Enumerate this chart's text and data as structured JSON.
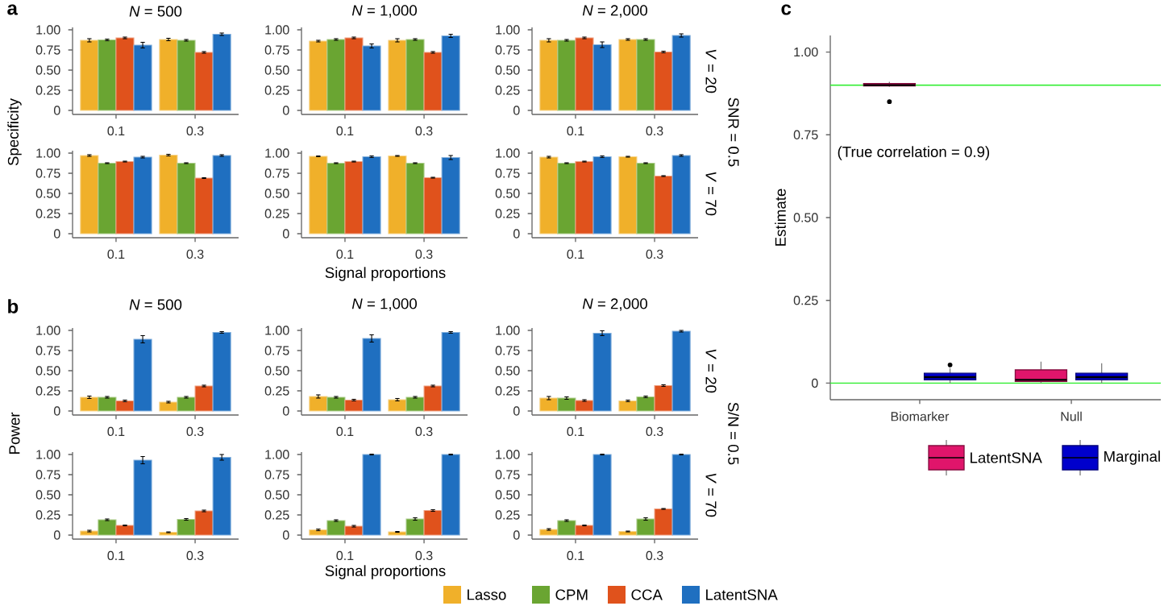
{
  "chart_data": [
    {
      "type": "bar",
      "title": "*N* = 500",
      "ylabel": "Specificity",
      "annotations": [
        "a"
      ],
      "categories": [
        "0.1",
        "0.3"
      ],
      "ylim": [
        -0.05,
        1.03
      ],
      "yticks": [
        0,
        {
          "value": 0.25,
          "label": "0.25"
        },
        {
          "value": 0.5,
          "label": "0.50"
        },
        {
          "value": 0.75,
          "label": "0.75"
        },
        {
          "value": 1,
          "label": "1.00"
        }
      ],
      "series": [
        {
          "color": "#f0b02a",
          "values": [
            0.87,
            0.88
          ],
          "errors": [
            0.02,
            0.015
          ]
        },
        {
          "color": "#6aa532",
          "values": [
            0.875,
            0.87
          ],
          "errors": [
            0.01,
            0.01
          ]
        },
        {
          "color": "#e0521c",
          "values": [
            0.9,
            0.72
          ],
          "errors": [
            0.01,
            0.01
          ]
        },
        {
          "color": "#1f6fc0",
          "values": [
            0.81,
            0.945
          ],
          "errors": [
            0.035,
            0.015
          ]
        }
      ]
    },
    {
      "type": "bar",
      "title": "*N* = 1,000",
      "categories": [
        "0.1",
        "0.3"
      ],
      "ylim": [
        -0.05,
        1.03
      ],
      "yticks": [
        0,
        {
          "value": 0.25,
          "label": "0.25"
        },
        {
          "value": 0.5,
          "label": "0.50"
        },
        {
          "value": 0.75,
          "label": "0.75"
        },
        {
          "value": 1,
          "label": "1.00"
        }
      ],
      "series": [
        {
          "color": "#f0b02a",
          "values": [
            0.86,
            0.87
          ],
          "errors": [
            0.01,
            0.02
          ]
        },
        {
          "color": "#6aa532",
          "values": [
            0.88,
            0.88
          ],
          "errors": [
            0.01,
            0.01
          ]
        },
        {
          "color": "#e0521c",
          "values": [
            0.9,
            0.72
          ],
          "errors": [
            0.01,
            0.01
          ]
        },
        {
          "color": "#1f6fc0",
          "values": [
            0.8,
            0.925
          ],
          "errors": [
            0.025,
            0.02
          ]
        }
      ]
    },
    {
      "type": "bar",
      "title": "*N* = 2,000",
      "annotations": [
        "*V* = 20",
        "SNR = 0.5"
      ],
      "categories": [
        "0.1",
        "0.3"
      ],
      "ylim": [
        -0.05,
        1.03
      ],
      "yticks": [
        0,
        {
          "value": 0.25,
          "label": "0.25"
        },
        {
          "value": 0.5,
          "label": "0.50"
        },
        {
          "value": 0.75,
          "label": "0.75"
        },
        {
          "value": 1,
          "label": "1.00"
        }
      ],
      "series": [
        {
          "color": "#f0b02a",
          "values": [
            0.87,
            0.88
          ],
          "errors": [
            0.02,
            0.01
          ]
        },
        {
          "color": "#6aa532",
          "values": [
            0.87,
            0.88
          ],
          "errors": [
            0.01,
            0.01
          ]
        },
        {
          "color": "#e0521c",
          "values": [
            0.9,
            0.725
          ],
          "errors": [
            0.01,
            0.01
          ]
        },
        {
          "color": "#1f6fc0",
          "values": [
            0.815,
            0.93
          ],
          "errors": [
            0.035,
            0.02
          ]
        }
      ]
    },
    {
      "type": "bar",
      "categories": [
        "0.1",
        "0.3"
      ],
      "ylim": [
        -0.05,
        1.03
      ],
      "yticks": [
        0,
        {
          "value": 0.25,
          "label": "0.25"
        },
        {
          "value": 0.5,
          "label": "0.50"
        },
        {
          "value": 0.75,
          "label": "0.75"
        },
        {
          "value": 1,
          "label": "1.00"
        }
      ],
      "series": [
        {
          "color": "#f0b02a",
          "values": [
            0.97,
            0.975
          ],
          "errors": [
            0.01,
            0.01
          ]
        },
        {
          "color": "#6aa532",
          "values": [
            0.875,
            0.875
          ],
          "errors": [
            0.005,
            0.005
          ]
        },
        {
          "color": "#e0521c",
          "values": [
            0.895,
            0.69
          ],
          "errors": [
            0.005,
            0.005
          ]
        },
        {
          "color": "#1f6fc0",
          "values": [
            0.95,
            0.97
          ],
          "errors": [
            0.01,
            0.01
          ]
        }
      ]
    },
    {
      "type": "bar",
      "xlabel": "Signal proportions",
      "categories": [
        "0.1",
        "0.3"
      ],
      "ylim": [
        -0.05,
        1.03
      ],
      "yticks": [
        0,
        {
          "value": 0.25,
          "label": "0.25"
        },
        {
          "value": 0.5,
          "label": "0.50"
        },
        {
          "value": 0.75,
          "label": "0.75"
        },
        {
          "value": 1,
          "label": "1.00"
        }
      ],
      "series": [
        {
          "color": "#f0b02a",
          "values": [
            0.96,
            0.965
          ],
          "errors": [
            0.005,
            0.005
          ]
        },
        {
          "color": "#6aa532",
          "values": [
            0.875,
            0.875
          ],
          "errors": [
            0.005,
            0.005
          ]
        },
        {
          "color": "#e0521c",
          "values": [
            0.895,
            0.695
          ],
          "errors": [
            0.005,
            0.005
          ]
        },
        {
          "color": "#1f6fc0",
          "values": [
            0.955,
            0.945
          ],
          "errors": [
            0.01,
            0.025
          ]
        }
      ]
    },
    {
      "type": "bar",
      "annotations": [
        "*V* = 70"
      ],
      "categories": [
        "0.1",
        "0.3"
      ],
      "ylim": [
        -0.05,
        1.03
      ],
      "yticks": [
        0,
        {
          "value": 0.25,
          "label": "0.25"
        },
        {
          "value": 0.5,
          "label": "0.50"
        },
        {
          "value": 0.75,
          "label": "0.75"
        },
        {
          "value": 1,
          "label": "1.00"
        }
      ],
      "series": [
        {
          "color": "#f0b02a",
          "values": [
            0.95,
            0.955
          ],
          "errors": [
            0.01,
            0.005
          ]
        },
        {
          "color": "#6aa532",
          "values": [
            0.875,
            0.875
          ],
          "errors": [
            0.005,
            0.005
          ]
        },
        {
          "color": "#e0521c",
          "values": [
            0.895,
            0.715
          ],
          "errors": [
            0.005,
            0.005
          ]
        },
        {
          "color": "#1f6fc0",
          "values": [
            0.955,
            0.97
          ],
          "errors": [
            0.01,
            0.01
          ]
        }
      ]
    },
    {
      "type": "bar",
      "title": "*N* = 500",
      "ylabel": "Power",
      "annotations": [
        "b"
      ],
      "categories": [
        "0.1",
        "0.3"
      ],
      "ylim": [
        -0.05,
        1.03
      ],
      "yticks": [
        0,
        {
          "value": 0.25,
          "label": "0.25"
        },
        {
          "value": 0.5,
          "label": "0.50"
        },
        {
          "value": 0.75,
          "label": "0.75"
        },
        {
          "value": 1,
          "label": "1.00"
        }
      ],
      "series": [
        {
          "color": "#f0b02a",
          "values": [
            0.17,
            0.11
          ],
          "errors": [
            0.015,
            0.01
          ]
        },
        {
          "color": "#6aa532",
          "values": [
            0.17,
            0.17
          ],
          "errors": [
            0.01,
            0.01
          ]
        },
        {
          "color": "#e0521c",
          "values": [
            0.125,
            0.31
          ],
          "errors": [
            0.01,
            0.01
          ]
        },
        {
          "color": "#1f6fc0",
          "values": [
            0.89,
            0.975
          ],
          "errors": [
            0.045,
            0.01
          ]
        }
      ]
    },
    {
      "type": "bar",
      "title": "*N* = 1,000",
      "categories": [
        "0.1",
        "0.3"
      ],
      "ylim": [
        -0.05,
        1.03
      ],
      "yticks": [
        0,
        {
          "value": 0.25,
          "label": "0.25"
        },
        {
          "value": 0.5,
          "label": "0.50"
        },
        {
          "value": 0.75,
          "label": "0.75"
        },
        {
          "value": 1,
          "label": "1.00"
        }
      ],
      "series": [
        {
          "color": "#f0b02a",
          "values": [
            0.18,
            0.14
          ],
          "errors": [
            0.02,
            0.015
          ]
        },
        {
          "color": "#6aa532",
          "values": [
            0.17,
            0.17
          ],
          "errors": [
            0.01,
            0.01
          ]
        },
        {
          "color": "#e0521c",
          "values": [
            0.135,
            0.31
          ],
          "errors": [
            0.01,
            0.01
          ]
        },
        {
          "color": "#1f6fc0",
          "values": [
            0.9,
            0.975
          ],
          "errors": [
            0.045,
            0.01
          ]
        }
      ]
    },
    {
      "type": "bar",
      "title": "*N* = 2,000",
      "annotations": [
        "*V* = 20",
        "S/N = 0.5"
      ],
      "categories": [
        "0.1",
        "0.3"
      ],
      "ylim": [
        -0.05,
        1.03
      ],
      "yticks": [
        0,
        {
          "value": 0.25,
          "label": "0.25"
        },
        {
          "value": 0.5,
          "label": "0.50"
        },
        {
          "value": 0.75,
          "label": "0.75"
        },
        {
          "value": 1,
          "label": "1.00"
        }
      ],
      "series": [
        {
          "color": "#f0b02a",
          "values": [
            0.16,
            0.125
          ],
          "errors": [
            0.02,
            0.01
          ]
        },
        {
          "color": "#6aa532",
          "values": [
            0.16,
            0.175
          ],
          "errors": [
            0.015,
            0.01
          ]
        },
        {
          "color": "#e0521c",
          "values": [
            0.13,
            0.315
          ],
          "errors": [
            0.01,
            0.01
          ]
        },
        {
          "color": "#1f6fc0",
          "values": [
            0.965,
            0.99
          ],
          "errors": [
            0.03,
            0.01
          ]
        }
      ]
    },
    {
      "type": "bar",
      "categories": [
        "0.1",
        "0.3"
      ],
      "ylim": [
        -0.05,
        1.03
      ],
      "yticks": [
        0,
        {
          "value": 0.25,
          "label": "0.25"
        },
        {
          "value": 0.5,
          "label": "0.50"
        },
        {
          "value": 0.75,
          "label": "0.75"
        },
        {
          "value": 1,
          "label": "1.00"
        }
      ],
      "series": [
        {
          "color": "#f0b02a",
          "values": [
            0.05,
            0.035
          ],
          "errors": [
            0.01,
            0.005
          ]
        },
        {
          "color": "#6aa532",
          "values": [
            0.19,
            0.195
          ],
          "errors": [
            0.01,
            0.01
          ]
        },
        {
          "color": "#e0521c",
          "values": [
            0.12,
            0.3
          ],
          "errors": [
            0.005,
            0.01
          ]
        },
        {
          "color": "#1f6fc0",
          "values": [
            0.93,
            0.965
          ],
          "errors": [
            0.045,
            0.035
          ]
        }
      ]
    },
    {
      "type": "bar",
      "xlabel": "Signal proportions",
      "categories": [
        "0.1",
        "0.3"
      ],
      "ylim": [
        -0.05,
        1.03
      ],
      "yticks": [
        0,
        {
          "value": 0.25,
          "label": "0.25"
        },
        {
          "value": 0.5,
          "label": "0.50"
        },
        {
          "value": 0.75,
          "label": "0.75"
        },
        {
          "value": 1,
          "label": "1.00"
        }
      ],
      "series": [
        {
          "color": "#f0b02a",
          "values": [
            0.065,
            0.04
          ],
          "errors": [
            0.01,
            0.005
          ]
        },
        {
          "color": "#6aa532",
          "values": [
            0.18,
            0.2
          ],
          "errors": [
            0.01,
            0.015
          ]
        },
        {
          "color": "#e0521c",
          "values": [
            0.11,
            0.305
          ],
          "errors": [
            0.01,
            0.01
          ]
        },
        {
          "color": "#1f6fc0",
          "values": [
            1.0,
            1.0
          ],
          "errors": [
            0.005,
            0.005
          ]
        }
      ]
    },
    {
      "type": "bar",
      "annotations": [
        "*V* = 70"
      ],
      "legend": "bottom",
      "categories": [
        "0.1",
        "0.3"
      ],
      "ylim": [
        -0.05,
        1.03
      ],
      "yticks": [
        0,
        {
          "value": 0.25,
          "label": "0.25"
        },
        {
          "value": 0.5,
          "label": "0.50"
        },
        {
          "value": 0.75,
          "label": "0.75"
        },
        {
          "value": 1,
          "label": "1.00"
        }
      ],
      "series": [
        {
          "name": "Lasso",
          "color": "#f0b02a",
          "values": [
            0.07,
            0.045
          ],
          "errors": [
            0.01,
            0.005
          ]
        },
        {
          "name": "CPM",
          "color": "#6aa532",
          "values": [
            0.18,
            0.2
          ],
          "errors": [
            0.01,
            0.015
          ]
        },
        {
          "name": "CCA",
          "color": "#e0521c",
          "values": [
            0.12,
            0.325
          ],
          "errors": [
            0.005,
            0.005
          ]
        },
        {
          "name": "LatentSNA",
          "color": "#1f6fc0",
          "values": [
            1.0,
            1.0
          ],
          "errors": [
            0.005,
            0.005
          ]
        }
      ]
    },
    {
      "type": "box",
      "ylabel": "Estimate",
      "annotations": [
        "c",
        "(True correlation = 0.9)"
      ],
      "legend": "bottom",
      "categories": [
        "Biomarker",
        "Null"
      ],
      "ylim": [
        -0.05,
        1.05
      ],
      "yticks": [
        0,
        {
          "value": 0.25,
          "label": "0.25"
        },
        {
          "value": 0.5,
          "label": "0.50"
        },
        {
          "value": 0.75,
          "label": "0.75"
        },
        {
          "value": 1,
          "label": "1.00"
        }
      ],
      "ref_lines": [
        {
          "axis": "y",
          "value": 0.9,
          "color": "#33ee33"
        },
        {
          "axis": "y",
          "value": 0,
          "color": "#33ee33"
        }
      ],
      "series": [
        {
          "name": "LatentSNA",
          "color": "#e0156b",
          "boxes": [
            {
              "low": 0.895,
              "q1": 0.898,
              "median": 0.9,
              "q3": 0.905,
              "high": 0.91,
              "outliers": [
                0.85
              ]
            },
            {
              "low": 0,
              "q1": 0.005,
              "median": 0.01,
              "q3": 0.04,
              "high": 0.065
            }
          ]
        },
        {
          "name": "Marginal",
          "color": "#0000cc",
          "boxes": [
            {
              "low": 0,
              "q1": 0.01,
              "median": 0.018,
              "q3": 0.03,
              "high": 0.045,
              "outliers": [
                0.055
              ]
            },
            {
              "low": 0,
              "q1": 0.01,
              "median": 0.018,
              "q3": 0.03,
              "high": 0.06
            }
          ]
        }
      ]
    }
  ]
}
